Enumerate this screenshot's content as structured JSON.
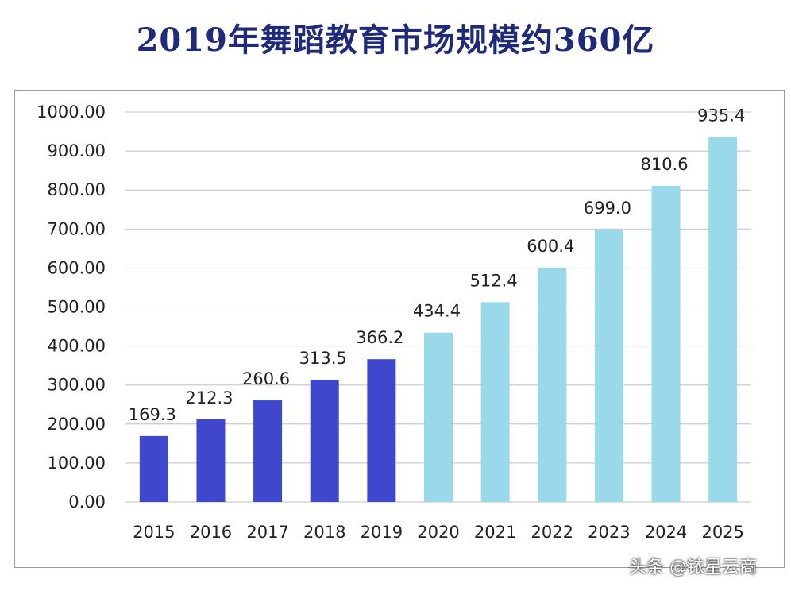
{
  "title": "2019年舞蹈教育市场规模约360亿",
  "watermark": "头条 @铱星云商",
  "colors": {
    "actual": "#3f48cc",
    "forecast": "#99d9ea",
    "grid": "#bfbfbf",
    "title": "#1f2a7a"
  },
  "chart_data": {
    "type": "bar",
    "title": "2019年舞蹈教育市场规模约360亿",
    "xlabel": "",
    "ylabel": "",
    "ylim": [
      0,
      1000
    ],
    "ytick_step": 100,
    "ytick_labels": [
      "0.00",
      "100.00",
      "200.00",
      "300.00",
      "400.00",
      "500.00",
      "600.00",
      "700.00",
      "800.00",
      "900.00",
      "1000.00"
    ],
    "grid": true,
    "categories": [
      "2015",
      "2016",
      "2017",
      "2018",
      "2019",
      "2020",
      "2021",
      "2022",
      "2023",
      "2024",
      "2025"
    ],
    "values": [
      169.3,
      212.3,
      260.6,
      313.5,
      366.2,
      434.4,
      512.4,
      600.4,
      699.0,
      810.6,
      935.4
    ],
    "data_labels": [
      "169.3",
      "212.3",
      "260.6",
      "313.5",
      "366.2",
      "434.4",
      "512.4",
      "600.4",
      "699.0",
      "810.6",
      "935.4"
    ],
    "bar_colors": [
      "#3f48cc",
      "#3f48cc",
      "#3f48cc",
      "#3f48cc",
      "#3f48cc",
      "#99d9ea",
      "#99d9ea",
      "#99d9ea",
      "#99d9ea",
      "#99d9ea",
      "#99d9ea"
    ]
  }
}
